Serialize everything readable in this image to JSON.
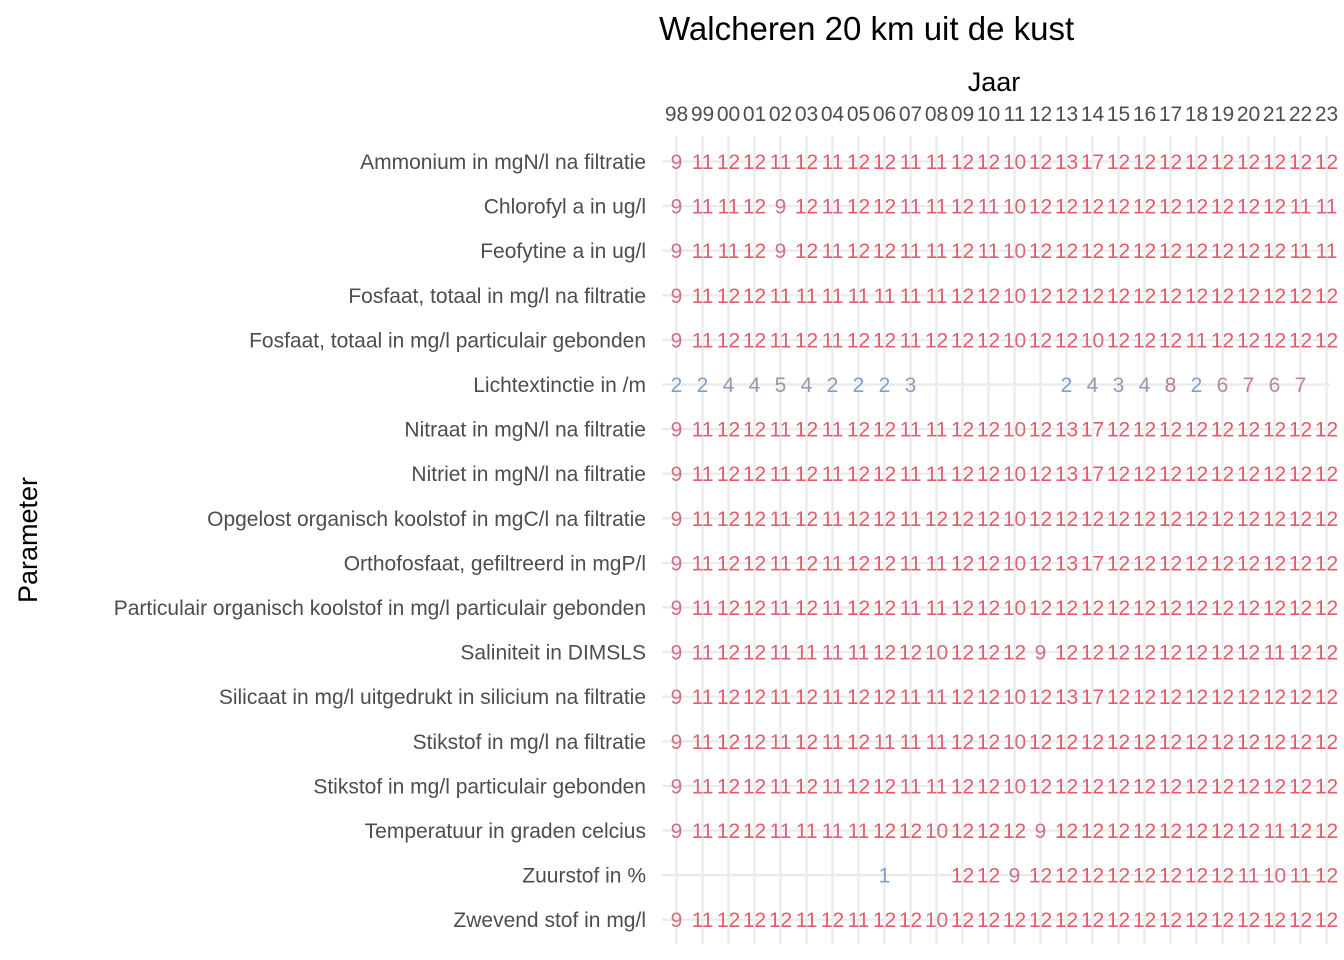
{
  "chart_data": {
    "type": "heatmap",
    "title": "Walcheren 20 km uit de kust",
    "xlabel": "Jaar",
    "ylabel": "Parameter",
    "x_axis_position": "top",
    "x": [
      "98",
      "99",
      "00",
      "01",
      "02",
      "03",
      "04",
      "05",
      "06",
      "07",
      "08",
      "09",
      "10",
      "11",
      "12",
      "13",
      "14",
      "15",
      "16",
      "17",
      "18",
      "19",
      "20",
      "21",
      "22",
      "23"
    ],
    "rows": [
      {
        "parameter": "Zwevend stof in mg/l",
        "values": [
          9,
          11,
          12,
          12,
          12,
          11,
          12,
          11,
          12,
          12,
          10,
          12,
          12,
          12,
          12,
          12,
          12,
          12,
          12,
          12,
          12,
          12,
          12,
          12,
          12,
          12
        ]
      },
      {
        "parameter": "Zuurstof in %",
        "values": [
          null,
          null,
          null,
          null,
          null,
          null,
          null,
          null,
          1,
          null,
          null,
          12,
          12,
          9,
          12,
          12,
          12,
          12,
          12,
          12,
          12,
          12,
          11,
          10,
          11,
          12
        ]
      },
      {
        "parameter": "Temperatuur in graden celcius",
        "values": [
          9,
          11,
          12,
          12,
          11,
          11,
          11,
          11,
          12,
          12,
          10,
          12,
          12,
          12,
          9,
          12,
          12,
          12,
          12,
          12,
          12,
          12,
          12,
          11,
          12,
          12
        ]
      },
      {
        "parameter": "Stikstof in mg/l particulair gebonden",
        "values": [
          9,
          11,
          12,
          12,
          11,
          12,
          11,
          12,
          12,
          11,
          11,
          12,
          12,
          10,
          12,
          12,
          12,
          12,
          12,
          12,
          12,
          12,
          12,
          12,
          12,
          12
        ]
      },
      {
        "parameter": "Stikstof in mg/l na filtratie",
        "values": [
          9,
          11,
          12,
          12,
          11,
          12,
          11,
          12,
          11,
          11,
          11,
          12,
          12,
          10,
          12,
          12,
          12,
          12,
          12,
          12,
          12,
          12,
          12,
          12,
          12,
          12
        ]
      },
      {
        "parameter": "Silicaat in mg/l uitgedrukt in silicium na filtratie",
        "values": [
          9,
          11,
          12,
          12,
          11,
          12,
          11,
          12,
          12,
          11,
          11,
          12,
          12,
          10,
          12,
          13,
          17,
          12,
          12,
          12,
          12,
          12,
          12,
          12,
          12,
          12
        ]
      },
      {
        "parameter": "Saliniteit in DIMSLS",
        "values": [
          9,
          11,
          12,
          12,
          11,
          11,
          11,
          11,
          12,
          12,
          10,
          12,
          12,
          12,
          9,
          12,
          12,
          12,
          12,
          12,
          12,
          12,
          12,
          11,
          12,
          12
        ]
      },
      {
        "parameter": "Particulair organisch koolstof in mg/l particulair gebonden",
        "values": [
          9,
          11,
          12,
          12,
          11,
          12,
          11,
          12,
          12,
          11,
          11,
          12,
          12,
          10,
          12,
          12,
          12,
          12,
          12,
          12,
          12,
          12,
          12,
          12,
          12,
          12
        ]
      },
      {
        "parameter": "Orthofosfaat, gefiltreerd in mgP/l",
        "values": [
          9,
          11,
          12,
          12,
          11,
          12,
          11,
          12,
          12,
          11,
          11,
          12,
          12,
          10,
          12,
          13,
          17,
          12,
          12,
          12,
          12,
          12,
          12,
          12,
          12,
          12
        ]
      },
      {
        "parameter": "Opgelost organisch koolstof in mgC/l na filtratie",
        "values": [
          9,
          11,
          12,
          12,
          11,
          12,
          11,
          12,
          12,
          11,
          12,
          12,
          12,
          10,
          12,
          12,
          12,
          12,
          12,
          12,
          12,
          12,
          12,
          12,
          12,
          12
        ]
      },
      {
        "parameter": "Nitriet in mgN/l na filtratie",
        "values": [
          9,
          11,
          12,
          12,
          11,
          12,
          11,
          12,
          12,
          11,
          11,
          12,
          12,
          10,
          12,
          13,
          17,
          12,
          12,
          12,
          12,
          12,
          12,
          12,
          12,
          12
        ]
      },
      {
        "parameter": "Nitraat in mgN/l na filtratie",
        "values": [
          9,
          11,
          12,
          12,
          11,
          12,
          11,
          12,
          12,
          11,
          11,
          12,
          12,
          10,
          12,
          13,
          17,
          12,
          12,
          12,
          12,
          12,
          12,
          12,
          12,
          12
        ]
      },
      {
        "parameter": "Lichtextinctie in /m",
        "values": [
          2,
          2,
          4,
          4,
          5,
          4,
          2,
          2,
          2,
          3,
          null,
          null,
          null,
          null,
          null,
          2,
          4,
          3,
          4,
          8,
          2,
          6,
          7,
          6,
          7,
          null
        ]
      },
      {
        "parameter": "Fosfaat, totaal in mg/l particulair gebonden",
        "values": [
          9,
          11,
          12,
          12,
          11,
          12,
          11,
          12,
          12,
          11,
          12,
          12,
          12,
          10,
          12,
          12,
          10,
          12,
          12,
          12,
          11,
          12,
          12,
          12,
          12,
          12
        ]
      },
      {
        "parameter": "Fosfaat, totaal in mg/l na filtratie",
        "values": [
          9,
          11,
          12,
          12,
          11,
          11,
          11,
          11,
          11,
          11,
          11,
          12,
          12,
          10,
          12,
          12,
          12,
          12,
          12,
          12,
          12,
          12,
          12,
          12,
          12,
          12
        ]
      },
      {
        "parameter": "Feofytine a in ug/l",
        "values": [
          9,
          11,
          11,
          12,
          9,
          12,
          11,
          12,
          12,
          11,
          11,
          12,
          11,
          10,
          12,
          12,
          12,
          12,
          12,
          12,
          12,
          12,
          12,
          12,
          11,
          11
        ]
      },
      {
        "parameter": "Chlorofyl a in ug/l",
        "values": [
          9,
          11,
          11,
          12,
          9,
          12,
          11,
          12,
          12,
          11,
          11,
          12,
          11,
          10,
          12,
          12,
          12,
          12,
          12,
          12,
          12,
          12,
          12,
          12,
          11,
          11
        ]
      },
      {
        "parameter": "Ammonium in mgN/l na filtratie",
        "values": [
          9,
          11,
          12,
          12,
          11,
          12,
          11,
          12,
          12,
          11,
          11,
          12,
          12,
          10,
          12,
          13,
          17,
          12,
          12,
          12,
          12,
          12,
          12,
          12,
          12,
          12
        ]
      }
    ],
    "color_scale": {
      "low": "#7f9fc8",
      "mid": "#b7889e",
      "high": "#e55a6a"
    },
    "grid": true,
    "legend": "none"
  }
}
